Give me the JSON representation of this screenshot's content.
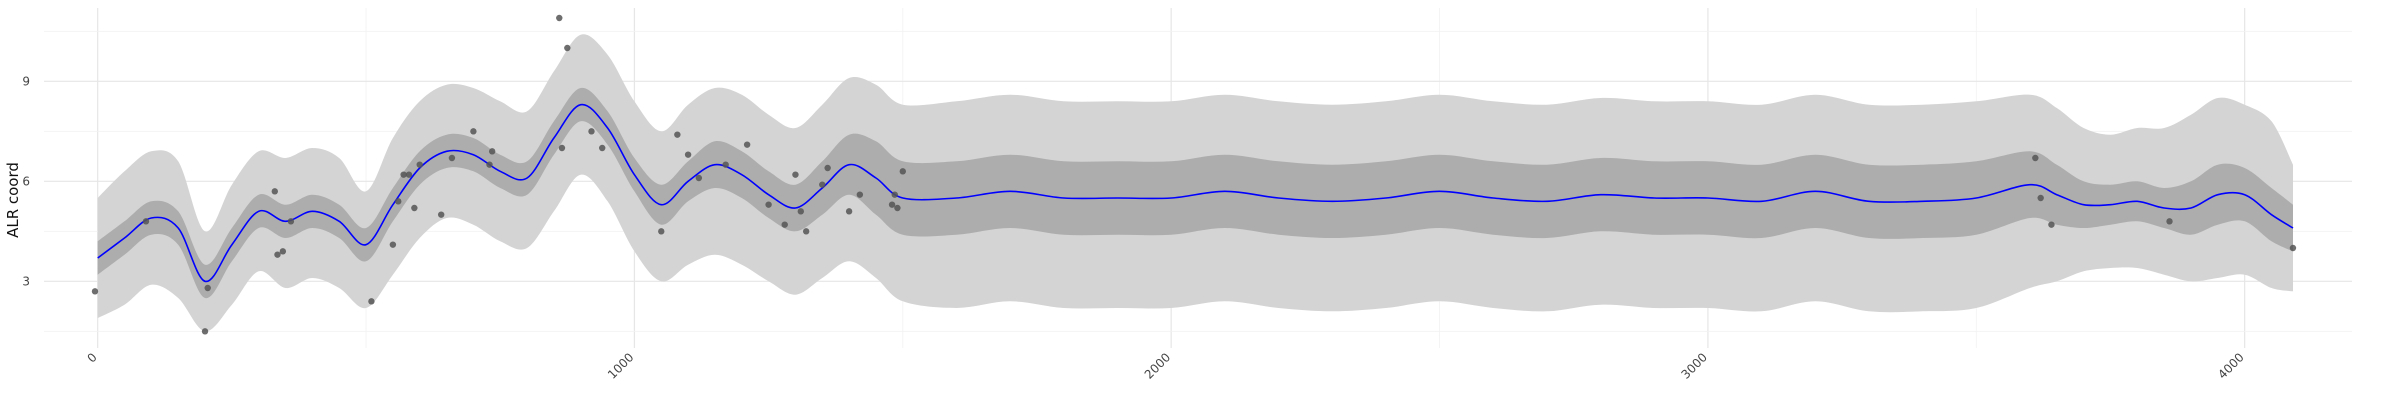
{
  "chart_data": {
    "type": "line",
    "xlabel": "",
    "ylabel": "ALR coord",
    "xlim": [
      -100,
      4200
    ],
    "ylim": [
      1.0,
      11.2
    ],
    "x_ticks": [
      0,
      1000,
      2000,
      3000,
      4000
    ],
    "x_tick_labels": [
      "0",
      "1000",
      "2000",
      "3000",
      "4000"
    ],
    "y_ticks": [
      3,
      6,
      9
    ],
    "y_tick_labels": [
      "3",
      "6",
      "9"
    ],
    "grid": true,
    "legend": "none",
    "colors": {
      "mean_line": "#0000ff",
      "inner_band": "#adadad",
      "outer_band": "#d4d4d4",
      "points": "#555555"
    },
    "series": [
      {
        "kind": "mean",
        "x": [
          0,
          50,
          100,
          150,
          200,
          250,
          300,
          350,
          400,
          450,
          500,
          550,
          600,
          650,
          700,
          750,
          800,
          850,
          900,
          950,
          1000,
          1050,
          1100,
          1150,
          1200,
          1250,
          1300,
          1350,
          1400,
          1450,
          1500,
          1600,
          1700,
          1800,
          1900,
          2000,
          2100,
          2200,
          2300,
          2400,
          2500,
          2600,
          2700,
          2800,
          2900,
          3000,
          3100,
          3200,
          3300,
          3400,
          3500,
          3600,
          3650,
          3700,
          3750,
          3800,
          3850,
          3900,
          3950,
          4000,
          4050,
          4090
        ],
        "y": [
          3.7,
          4.3,
          4.9,
          4.6,
          3.0,
          4.1,
          5.1,
          4.8,
          5.1,
          4.8,
          4.1,
          5.3,
          6.4,
          6.9,
          6.8,
          6.3,
          6.1,
          7.3,
          8.3,
          7.6,
          6.2,
          5.3,
          6.0,
          6.5,
          6.2,
          5.6,
          5.2,
          5.8,
          6.5,
          6.1,
          5.5,
          5.5,
          5.7,
          5.5,
          5.5,
          5.5,
          5.7,
          5.5,
          5.4,
          5.5,
          5.7,
          5.5,
          5.4,
          5.6,
          5.5,
          5.5,
          5.4,
          5.7,
          5.4,
          5.4,
          5.5,
          5.9,
          5.6,
          5.3,
          5.3,
          5.4,
          5.2,
          5.2,
          5.6,
          5.6,
          5.0,
          4.6
        ]
      },
      {
        "kind": "inner-band",
        "lower": [
          3.2,
          3.8,
          4.4,
          4.1,
          2.5,
          3.6,
          4.6,
          4.3,
          4.6,
          4.3,
          3.6,
          4.8,
          5.9,
          6.4,
          6.3,
          5.8,
          5.6,
          6.8,
          7.8,
          7.1,
          5.7,
          4.7,
          5.4,
          5.8,
          5.5,
          4.9,
          4.5,
          5.0,
          5.6,
          5.0,
          4.4,
          4.4,
          4.6,
          4.4,
          4.4,
          4.4,
          4.6,
          4.4,
          4.3,
          4.4,
          4.6,
          4.4,
          4.3,
          4.5,
          4.4,
          4.4,
          4.3,
          4.6,
          4.3,
          4.3,
          4.4,
          4.9,
          4.7,
          4.6,
          4.7,
          4.8,
          4.6,
          4.4,
          4.7,
          4.8,
          4.2,
          3.9
        ],
        "upper": [
          4.2,
          4.8,
          5.4,
          5.1,
          3.5,
          4.6,
          5.6,
          5.3,
          5.6,
          5.3,
          4.6,
          5.8,
          6.9,
          7.4,
          7.3,
          6.8,
          6.6,
          7.8,
          8.8,
          8.1,
          6.7,
          5.9,
          6.6,
          7.2,
          6.9,
          6.3,
          5.9,
          6.6,
          7.4,
          7.2,
          6.6,
          6.6,
          6.8,
          6.6,
          6.6,
          6.6,
          6.8,
          6.6,
          6.5,
          6.6,
          6.8,
          6.6,
          6.5,
          6.7,
          6.6,
          6.6,
          6.5,
          6.8,
          6.5,
          6.5,
          6.6,
          6.9,
          6.5,
          6.0,
          5.9,
          6.0,
          5.8,
          6.0,
          6.5,
          6.4,
          5.8,
          5.3
        ]
      },
      {
        "kind": "outer-band",
        "lower": [
          1.9,
          2.3,
          2.9,
          2.5,
          1.5,
          2.3,
          3.3,
          2.8,
          3.1,
          2.8,
          2.2,
          3.2,
          4.3,
          4.9,
          4.7,
          4.2,
          4.0,
          5.1,
          6.2,
          5.4,
          3.9,
          3.0,
          3.5,
          3.8,
          3.5,
          3.0,
          2.6,
          3.1,
          3.6,
          3.1,
          2.4,
          2.2,
          2.4,
          2.2,
          2.2,
          2.2,
          2.4,
          2.2,
          2.1,
          2.2,
          2.4,
          2.2,
          2.1,
          2.3,
          2.2,
          2.2,
          2.1,
          2.4,
          2.1,
          2.1,
          2.2,
          2.8,
          3.0,
          3.3,
          3.4,
          3.4,
          3.2,
          3.0,
          3.1,
          3.2,
          2.8,
          2.7
        ],
        "upper": [
          5.5,
          6.3,
          6.9,
          6.6,
          4.5,
          5.9,
          6.9,
          6.7,
          7.0,
          6.7,
          5.7,
          7.3,
          8.4,
          8.9,
          8.8,
          8.4,
          8.1,
          9.3,
          10.4,
          9.8,
          8.4,
          7.5,
          8.3,
          8.8,
          8.6,
          8.0,
          7.6,
          8.3,
          9.1,
          8.9,
          8.3,
          8.4,
          8.6,
          8.4,
          8.4,
          8.4,
          8.6,
          8.4,
          8.3,
          8.4,
          8.6,
          8.4,
          8.3,
          8.5,
          8.4,
          8.4,
          8.3,
          8.6,
          8.3,
          8.3,
          8.4,
          8.6,
          8.2,
          7.6,
          7.4,
          7.6,
          7.6,
          8.0,
          8.5,
          8.3,
          7.8,
          6.5
        ]
      },
      {
        "kind": "points",
        "x": [
          -5,
          90,
          200,
          205,
          330,
          335,
          345,
          360,
          510,
          550,
          560,
          570,
          580,
          590,
          600,
          640,
          660,
          700,
          730,
          735,
          860,
          865,
          875,
          920,
          940,
          1050,
          1080,
          1100,
          1120,
          1170,
          1210,
          1250,
          1280,
          1300,
          1310,
          1320,
          1350,
          1360,
          1400,
          1420,
          1480,
          1485,
          1490,
          1500,
          3610,
          3620,
          3640,
          3860,
          4090
        ],
        "y": [
          2.7,
          4.8,
          1.5,
          2.8,
          5.7,
          3.8,
          3.9,
          4.8,
          2.4,
          4.1,
          5.4,
          6.2,
          6.2,
          5.2,
          6.5,
          5.0,
          6.7,
          7.5,
          6.5,
          6.9,
          10.9,
          7.0,
          10.0,
          7.5,
          7.0,
          4.5,
          7.4,
          6.8,
          6.1,
          6.5,
          7.1,
          5.3,
          4.7,
          6.2,
          5.1,
          4.5,
          5.9,
          6.4,
          5.1,
          5.6,
          5.3,
          5.6,
          5.2,
          6.3,
          6.7,
          5.5,
          4.7,
          4.8,
          4.0
        ]
      }
    ]
  }
}
